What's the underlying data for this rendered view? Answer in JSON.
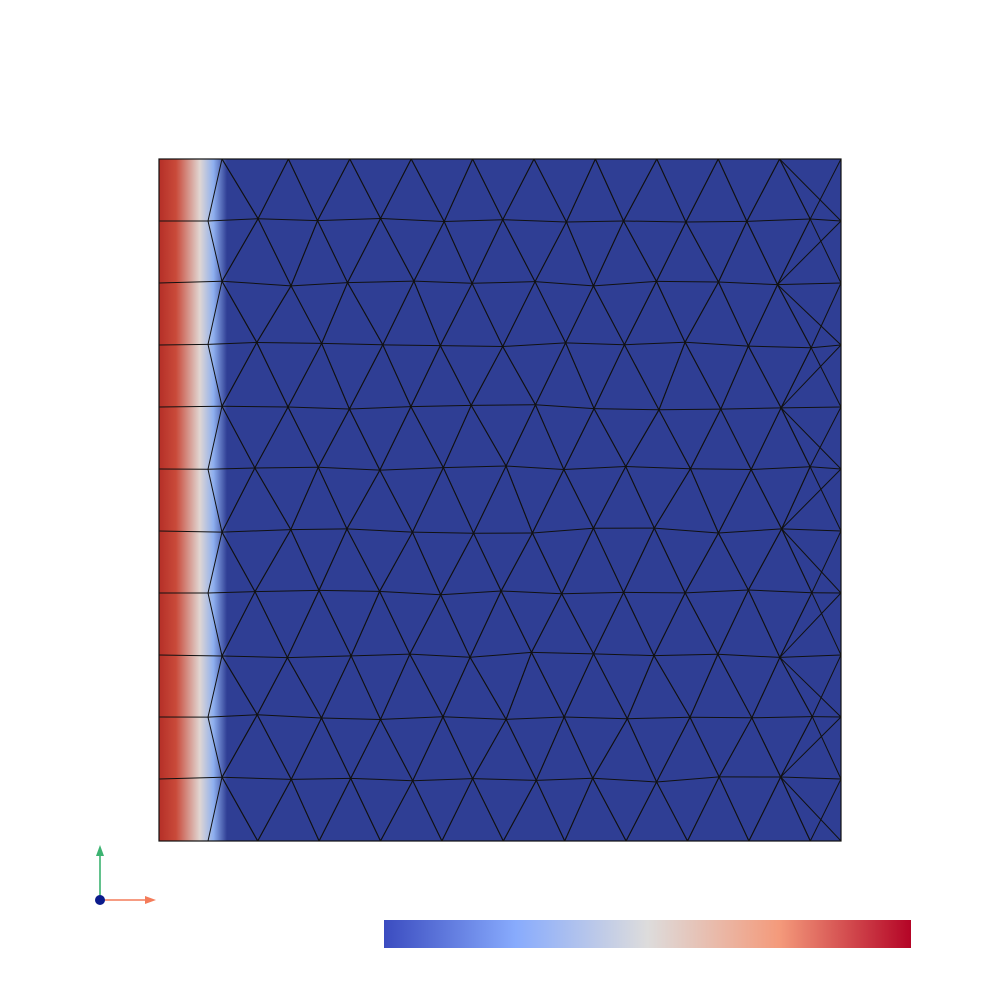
{
  "view": {
    "background": "#ffffff",
    "field_fill": "#2f3e94",
    "edge_color": "#111111"
  },
  "colormap": {
    "name": "Cool to Warm",
    "stops": [
      "#3b4cc0",
      "#88abfd",
      "#dddcdc",
      "#f49a7b",
      "#b40426"
    ]
  },
  "boundary_gradient": {
    "stops": [
      "#b52f27",
      "#c94a3a",
      "#e0d6d2",
      "#8fb0ef",
      "#2f3e94"
    ]
  },
  "axes": {
    "x_color": "#f47c5a",
    "y_color": "#3cb371",
    "origin_color": "#0b1b8c"
  },
  "mesh": {
    "pattern": "unstructured-triangular",
    "rows": 11,
    "cols": 10
  }
}
